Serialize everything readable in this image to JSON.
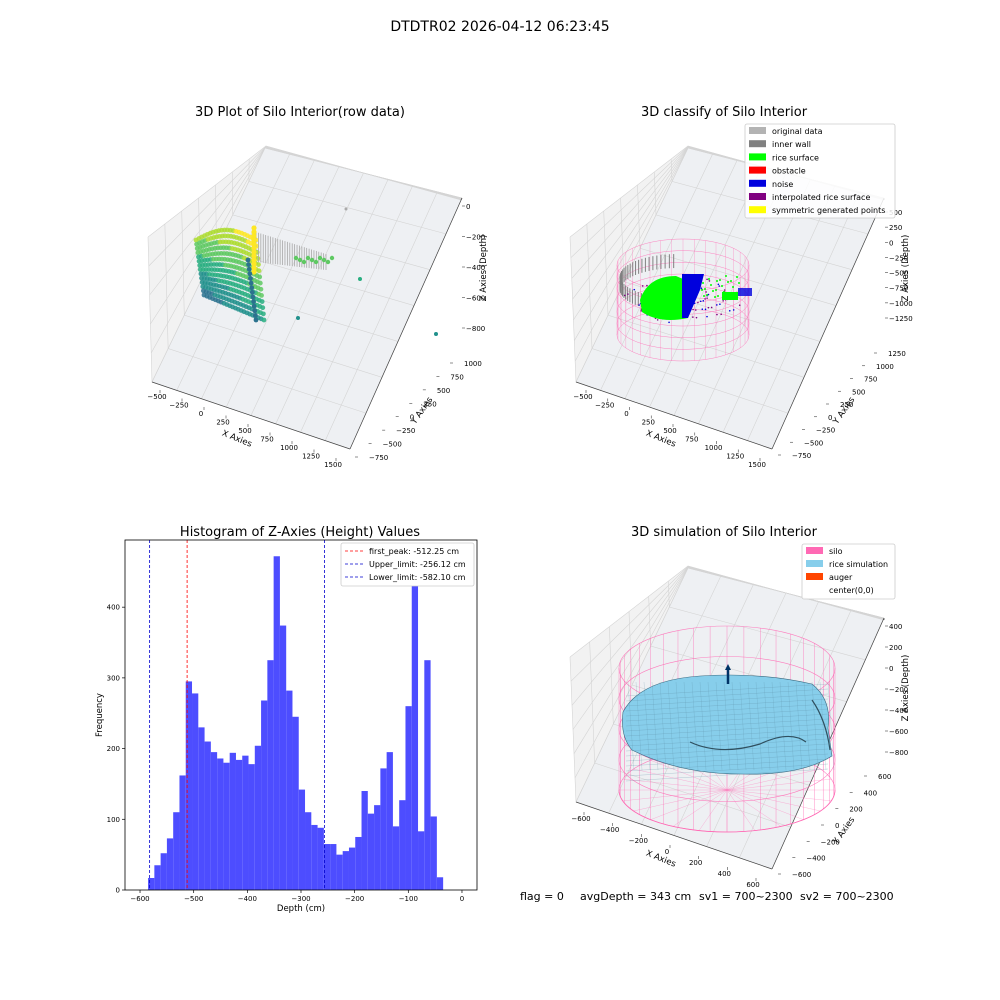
{
  "suptitle": "DTDTR02 2026-04-12 06:23:45",
  "footer": {
    "flag": "flag = 0",
    "avg": "avgDepth = 343 cm",
    "sv1": "sv1 = 700~2300",
    "sv2": "sv2 = 700~2300"
  },
  "colors": {
    "hist_bar": "#4d4dff",
    "first_peak": "#ff0000",
    "limit": "#0000cc",
    "original": "#b3b3b3",
    "inner_wall": "#808080",
    "rice_surface": "#00ff00",
    "obstacle": "#ff0000",
    "noise": "#0000dd",
    "interpolated": "#800080",
    "symmetric": "#ffff00",
    "silo": "#ff69b4",
    "rice_sim": "#87ceeb",
    "auger": "#ff4500"
  },
  "chart_data": [
    {
      "type": "scatter",
      "title": "3D Plot of Silo Interior(row data)",
      "xlabel": "X Axies",
      "ylabel": "Y Axies",
      "zlabel": "Z Axies (Depth)",
      "x_ticks": [
        "−500",
        "−250",
        "0",
        "250",
        "500",
        "750",
        "1000",
        "1250",
        "1500"
      ],
      "y_ticks": [
        "−750",
        "−500",
        "−250",
        "0",
        "250",
        "500",
        "750",
        "1000"
      ],
      "z_ticks": [
        "−800",
        "−600",
        "−400",
        "−200",
        "0"
      ],
      "colormap": "viridis"
    },
    {
      "type": "scatter",
      "title": "3D classify of Silo Interior",
      "xlabel": "X Axies",
      "ylabel": "Y Axies",
      "zlabel": "Z Axies (Depth)",
      "x_ticks": [
        "−500",
        "−250",
        "0",
        "250",
        "500",
        "750",
        "1000",
        "1250",
        "1500"
      ],
      "y_ticks": [
        "−750",
        "−500",
        "−250",
        "0",
        "250",
        "500",
        "750",
        "1000",
        "1250"
      ],
      "z_ticks": [
        "−1250",
        "−1000",
        "−750",
        "−500",
        "−250",
        "0",
        "250",
        "500"
      ],
      "legend_position": "top-right",
      "legend": [
        {
          "label": "original data",
          "color": "#b3b3b3"
        },
        {
          "label": "inner wall",
          "color": "#808080"
        },
        {
          "label": "rice surface",
          "color": "#00ff00"
        },
        {
          "label": "obstacle",
          "color": "#ff0000"
        },
        {
          "label": "noise",
          "color": "#0000dd"
        },
        {
          "label": "interpolated rice surface",
          "color": "#800080"
        },
        {
          "label": "symmetric generated points",
          "color": "#ffff00"
        }
      ]
    },
    {
      "type": "bar",
      "title": "Histogram of Z-Axies (Height) Values",
      "xlabel": "Depth (cm)",
      "ylabel": "Frequency",
      "xlim": [
        -628,
        28
      ],
      "ylim": [
        0,
        495
      ],
      "x_ticks": [
        -600,
        -500,
        -400,
        -300,
        -200,
        -100,
        0
      ],
      "y_ticks": [
        0,
        100,
        200,
        300,
        400
      ],
      "bin_start": -585,
      "bin_width": 11.7,
      "values": [
        17,
        35,
        52,
        73,
        110,
        162,
        295,
        278,
        230,
        210,
        195,
        186,
        180,
        194,
        184,
        190,
        178,
        204,
        268,
        325,
        472,
        374,
        282,
        245,
        142,
        110,
        92,
        88,
        65,
        65,
        50,
        55,
        60,
        75,
        140,
        108,
        120,
        172,
        195,
        90,
        127,
        260,
        430,
        83,
        325,
        104,
        18
      ],
      "vlines": [
        {
          "name": "first_peak",
          "label": "first_peak: -512.25 cm",
          "x": -512.25,
          "color": "#ff0000"
        },
        {
          "name": "upper_limit",
          "label": "Upper_limit: -256.12 cm",
          "x": -256.12,
          "color": "#0000cc"
        },
        {
          "name": "lower_limit",
          "label": "Lower_limit: -582.10 cm",
          "x": -582.1,
          "color": "#0000cc"
        }
      ],
      "legend_position": "top-right"
    },
    {
      "type": "area",
      "title": "3D simulation of Silo Interior",
      "xlabel": "X Axies",
      "ylabel": "Y Axies",
      "zlabel": "Z Axies (Depth)",
      "x_ticks": [
        "−600",
        "−400",
        "−200",
        "0",
        "200",
        "400",
        "600"
      ],
      "y_ticks": [
        "−600",
        "−400",
        "−200",
        "0",
        "200",
        "400",
        "600"
      ],
      "z_ticks": [
        "−800",
        "−600",
        "−400",
        "−200",
        "0",
        "200",
        "400"
      ],
      "legend_position": "top-right",
      "legend": [
        {
          "label": "silo",
          "color": "#ff69b4"
        },
        {
          "label": "rice simulation",
          "color": "#87ceeb"
        },
        {
          "label": "auger",
          "color": "#ff4500"
        },
        {
          "label": "center(0,0)",
          "color": "#ffffff"
        }
      ]
    }
  ]
}
